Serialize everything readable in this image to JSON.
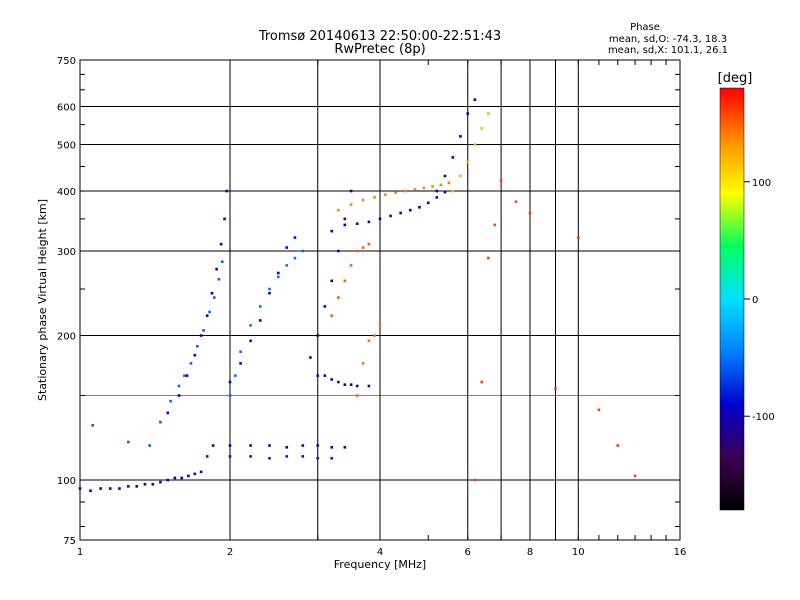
{
  "chart_data": {
    "type": "scatter",
    "title": "Tromsø 20140613 22:50:00-22:51:43",
    "subtitle": "RwPretec (8p)",
    "xlabel": "Frequency [MHz]",
    "ylabel": "Stationary phase Virtual Height [km]",
    "xscale": "log",
    "yscale": "log",
    "xlim": [
      1,
      16
    ],
    "ylim": [
      75,
      750
    ],
    "xticks": [
      1,
      2,
      4,
      6,
      8,
      10,
      16
    ],
    "yticks": [
      75,
      100,
      200,
      300,
      400,
      500,
      600,
      750
    ],
    "x_minor_gridlines": [
      3,
      7,
      9
    ],
    "y_minor_gridlines": [
      150
    ],
    "grid": true,
    "stats": {
      "heading": "Phase",
      "line_o": "mean, sd,O: -74.3, 18.3",
      "line_x": "mean, sd,X: 101.1, 26.1"
    },
    "colorbar": {
      "label": "[deg]",
      "ticks": [
        100,
        0,
        -100
      ],
      "range": [
        -180,
        180
      ],
      "palette": [
        "#000000",
        "#3c0050",
        "#0000cc",
        "#0080ff",
        "#00e0ff",
        "#00ff60",
        "#ffff00",
        "#ff9000",
        "#ff0000"
      ]
    },
    "series": [
      {
        "x": [
          1.0,
          1.05,
          1.1,
          1.15,
          1.2,
          1.25,
          1.3,
          1.35,
          1.4,
          1.45,
          1.5,
          1.55,
          1.6,
          1.65,
          1.7,
          1.75
        ],
        "y": [
          96,
          95,
          96,
          96,
          96,
          97,
          97,
          98,
          98,
          99,
          100,
          101,
          101,
          102,
          103,
          104
        ],
        "phase": -95
      },
      {
        "x": [
          1.06,
          1.25,
          1.38,
          1.45,
          1.52,
          1.58,
          1.62,
          1.67,
          1.72,
          1.77,
          1.82,
          1.86,
          1.9,
          1.93
        ],
        "y": [
          130,
          120,
          118,
          132,
          146,
          157,
          165,
          175,
          190,
          205,
          224,
          240,
          262,
          285
        ],
        "phase": -55
      },
      {
        "x": [
          1.5,
          1.58,
          1.64,
          1.7,
          1.75,
          1.8,
          1.84,
          1.88,
          1.92,
          1.95,
          1.97
        ],
        "y": [
          138,
          150,
          165,
          182,
          200,
          220,
          245,
          275,
          310,
          350,
          400
        ],
        "phase": -100
      },
      {
        "x": [
          2.0,
          2.05,
          2.1,
          2.2,
          2.3,
          2.4,
          2.5,
          2.6,
          2.7,
          2.8
        ],
        "y": [
          150,
          165,
          185,
          210,
          230,
          250,
          265,
          280,
          290,
          300
        ],
        "phase": -50
      },
      {
        "x": [
          2.0,
          2.1,
          2.2,
          2.3,
          2.4,
          2.5,
          2.6,
          2.7
        ],
        "y": [
          160,
          175,
          195,
          215,
          245,
          270,
          305,
          320
        ],
        "phase": -100
      },
      {
        "x": [
          1.85,
          2.0,
          2.2,
          2.4,
          2.6,
          2.8,
          3.0,
          3.2,
          3.4
        ],
        "y": [
          118,
          118,
          118,
          118,
          117,
          118,
          118,
          117,
          117
        ],
        "phase": -100
      },
      {
        "x": [
          1.8,
          2.0,
          2.2,
          2.4,
          2.6,
          2.8,
          3.0,
          3.2
        ],
        "y": [
          112,
          112,
          112,
          111,
          112,
          112,
          111,
          111
        ],
        "phase": -80
      },
      {
        "x": [
          2.9,
          3.0,
          3.1,
          3.2,
          3.3,
          3.4,
          3.5
        ],
        "y": [
          180,
          200,
          230,
          260,
          300,
          350,
          400
        ],
        "phase": -110
      },
      {
        "x": [
          3.0,
          3.1,
          3.2,
          3.3,
          3.4,
          3.5,
          3.6,
          3.8
        ],
        "y": [
          165,
          165,
          162,
          160,
          158,
          158,
          157,
          157
        ],
        "phase": -105
      },
      {
        "x": [
          3.2,
          3.4,
          3.6,
          3.8,
          4.0,
          4.2,
          4.4,
          4.6,
          4.8,
          5.0,
          5.2,
          5.4
        ],
        "y": [
          330,
          340,
          342,
          345,
          350,
          355,
          360,
          365,
          370,
          378,
          388,
          398
        ],
        "phase": -100
      },
      {
        "x": [
          3.3,
          3.5,
          3.7,
          3.9,
          4.1,
          4.3,
          4.5,
          4.7,
          4.9,
          5.1,
          5.3,
          5.5
        ],
        "y": [
          365,
          375,
          383,
          388,
          393,
          397,
          400,
          403,
          406,
          409,
          412,
          416
        ],
        "phase": 140
      },
      {
        "x": [
          5.2,
          5.4,
          5.6,
          5.8,
          6.0,
          6.2
        ],
        "y": [
          400,
          430,
          470,
          520,
          580,
          620
        ],
        "phase": -90
      },
      {
        "x": [
          5.6,
          5.8,
          6.0,
          6.2,
          6.4,
          6.6
        ],
        "y": [
          400,
          430,
          460,
          500,
          540,
          580
        ],
        "phase": 120
      },
      {
        "x": [
          3.2,
          3.3,
          3.4,
          3.5,
          3.6,
          3.7,
          3.8
        ],
        "y": [
          220,
          240,
          260,
          280,
          300,
          305,
          310
        ],
        "phase": 150
      },
      {
        "x": [
          3.6,
          3.7,
          3.8,
          3.9,
          4.0
        ],
        "y": [
          150,
          175,
          195,
          200,
          210
        ],
        "phase": 145
      },
      {
        "x": [
          6.2,
          6.4,
          6.6,
          6.8,
          7.0,
          7.5,
          8.0,
          9.0,
          10.0,
          11.0,
          12.0,
          13.0
        ],
        "y": [
          100,
          160,
          290,
          340,
          420,
          380,
          360,
          155,
          320,
          140,
          118,
          102
        ],
        "phase": 160
      }
    ]
  }
}
